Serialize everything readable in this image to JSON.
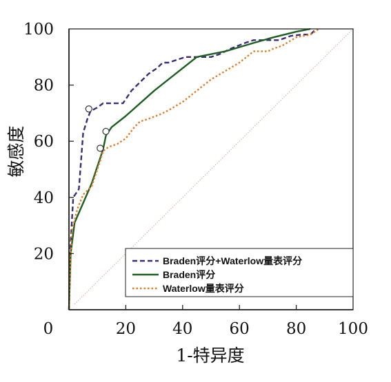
{
  "chart_data": {
    "type": "line",
    "xlabel": "1-特异度",
    "ylabel": "敏感度",
    "xlim": [
      0,
      100
    ],
    "ylim": [
      0,
      100
    ],
    "x_ticks": [
      "0",
      "20",
      "40",
      "60",
      "80",
      "100"
    ],
    "y_ticks": [
      "20",
      "40",
      "60",
      "80",
      "100"
    ],
    "legend_position": "bottom-right",
    "reference_line": {
      "from": [
        2,
        2
      ],
      "to": [
        100,
        100
      ],
      "color": "#e3a29a",
      "style": "dotted"
    },
    "series": [
      {
        "name": "Braden评分+Waterlow量表评分",
        "color": "#3b2a7a",
        "style": "dashed",
        "x": [
          0,
          0.6,
          1.5,
          3.5,
          5,
          6.5,
          7.5,
          9,
          10,
          12,
          19,
          20,
          22,
          25,
          28,
          31,
          33,
          35,
          38,
          41,
          45,
          50,
          53,
          57,
          62,
          65,
          69,
          74,
          78,
          82,
          85,
          87
        ],
        "y": [
          0,
          24,
          40,
          43,
          63,
          68,
          70.5,
          71.5,
          72,
          73.5,
          73.5,
          75,
          78,
          81,
          84,
          86,
          88,
          88,
          89,
          90,
          90,
          90,
          91,
          93,
          95,
          96,
          96,
          96,
          97.5,
          98,
          98,
          100
        ],
        "marker": {
          "x": 7,
          "y": 71.5
        }
      },
      {
        "name": "Braden评分",
        "color": "#1b5e20",
        "style": "solid",
        "x": [
          0,
          0.6,
          2,
          8,
          12,
          13,
          15,
          20,
          30,
          45,
          55,
          65,
          72,
          80,
          85
        ],
        "y": [
          0,
          20,
          31,
          45,
          57,
          62,
          65,
          69,
          78,
          90,
          92,
          95,
          97,
          99,
          100
        ],
        "marker": {
          "x": 13,
          "y": 63.5
        }
      },
      {
        "name": "Waterlow量表评分",
        "color": "#e07b24",
        "style": "dotted",
        "x": [
          0,
          0.5,
          1,
          3,
          5,
          8,
          11,
          12,
          14,
          17,
          20,
          23,
          25,
          28,
          32,
          35,
          40,
          45,
          50,
          55,
          60,
          65,
          70,
          72,
          75,
          80,
          85,
          88
        ],
        "y": [
          0,
          15,
          28,
          36,
          41,
          44,
          53,
          56.5,
          58,
          59,
          61,
          65,
          67,
          68,
          69.5,
          71,
          74,
          78,
          82,
          85,
          88,
          92,
          92,
          93,
          94,
          97,
          98,
          100
        ],
        "marker": {
          "x": 11,
          "y": 57.5
        }
      }
    ]
  }
}
